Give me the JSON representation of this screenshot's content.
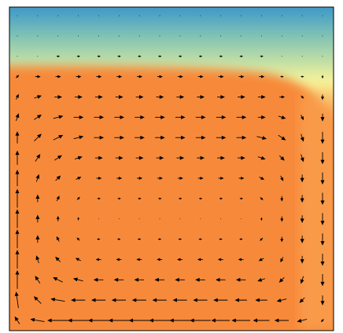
{
  "chart_data": {
    "type": "quiver",
    "color": "#000000",
    "u": [
      [
        0,
        0,
        0,
        0,
        0,
        0,
        0,
        0,
        0,
        0,
        0,
        0,
        0,
        0,
        0,
        0
      ],
      [
        0,
        0,
        0,
        0,
        0,
        0,
        0,
        0,
        0,
        0,
        0,
        0,
        0,
        0,
        0,
        0
      ],
      [
        0,
        0,
        1,
        1,
        1,
        1,
        1,
        1,
        1,
        1,
        1,
        1,
        1,
        0,
        0,
        0
      ],
      [
        1,
        2,
        2,
        2,
        2,
        2,
        2,
        2,
        2,
        2,
        2,
        2,
        2,
        1,
        1,
        0
      ],
      [
        1,
        3,
        3,
        3,
        3,
        3,
        3,
        3,
        3,
        3,
        3,
        3,
        3,
        2,
        1,
        0
      ],
      [
        1,
        3,
        4,
        4,
        4,
        4,
        4,
        4,
        4,
        4,
        4,
        4,
        3,
        3,
        1,
        0
      ],
      [
        0,
        3,
        4,
        4,
        4,
        4,
        4,
        4,
        4,
        4,
        4,
        4,
        4,
        3,
        1,
        0
      ],
      [
        0,
        2,
        3,
        3,
        3,
        3,
        3,
        3,
        3,
        3,
        3,
        3,
        3,
        2,
        1,
        0
      ],
      [
        0,
        1,
        2,
        2,
        2,
        2,
        2,
        2,
        2,
        2,
        2,
        2,
        2,
        1,
        0,
        0
      ],
      [
        0,
        0,
        1,
        1,
        1,
        1,
        1,
        1,
        1,
        1,
        1,
        1,
        1,
        0,
        0,
        0
      ],
      [
        0,
        0,
        0,
        0,
        0,
        0,
        0,
        0,
        0,
        0,
        0,
        0,
        0,
        0,
        0,
        0
      ],
      [
        0,
        0,
        -1,
        -1,
        -1,
        -1,
        -1,
        -1,
        -1,
        -1,
        -1,
        -1,
        -1,
        0,
        0,
        0
      ],
      [
        0,
        -1,
        -2,
        -2,
        -2,
        -2,
        -2,
        -2,
        -2,
        -2,
        -2,
        -2,
        -2,
        -1,
        0,
        0
      ],
      [
        0,
        -2,
        -4,
        -4,
        -4,
        -4,
        -4,
        -4,
        -4,
        -4,
        -4,
        -4,
        -3,
        -2,
        -1,
        0
      ],
      [
        -1,
        -3,
        -6,
        -6,
        -6,
        -6,
        -6,
        -6,
        -6,
        -6,
        -6,
        -5,
        -5,
        -4,
        -2,
        0
      ],
      [
        -2,
        -6,
        -9,
        -9,
        -9,
        -9,
        -9,
        -9,
        -9,
        -9,
        -8,
        -8,
        -7,
        -6,
        -4,
        -1
      ]
    ],
    "v": [
      [
        0,
        0,
        0,
        0,
        0,
        0,
        0,
        0,
        0,
        0,
        0,
        0,
        0,
        0,
        0,
        0
      ],
      [
        0,
        0,
        0,
        0,
        0,
        0,
        0,
        0,
        0,
        0,
        0,
        0,
        0,
        0,
        0,
        0
      ],
      [
        0,
        0,
        0,
        0,
        0,
        0,
        0,
        0,
        0,
        0,
        0,
        0,
        0,
        0,
        0,
        0
      ],
      [
        1,
        0,
        0,
        0,
        0,
        0,
        0,
        0,
        0,
        0,
        0,
        0,
        0,
        0,
        0,
        -1
      ],
      [
        2,
        1,
        0,
        0,
        0,
        0,
        0,
        0,
        0,
        0,
        0,
        0,
        0,
        0,
        -1,
        -2
      ],
      [
        3,
        2,
        1,
        0,
        0,
        0,
        0,
        0,
        0,
        0,
        0,
        0,
        0,
        -1,
        -2,
        -3
      ],
      [
        5,
        3,
        2,
        1,
        0,
        0,
        0,
        0,
        0,
        0,
        0,
        0,
        -1,
        -2,
        -3,
        -5
      ],
      [
        6,
        3,
        2,
        1,
        0,
        0,
        0,
        0,
        0,
        0,
        0,
        0,
        -1,
        -2,
        -3,
        -5
      ],
      [
        7,
        3,
        2,
        1,
        0,
        0,
        0,
        0,
        0,
        0,
        0,
        0,
        -1,
        -2,
        -3,
        -5
      ],
      [
        8,
        3,
        2,
        1,
        0,
        0,
        0,
        0,
        0,
        0,
        0,
        0,
        -1,
        -2,
        -3,
        -5
      ],
      [
        8,
        3,
        2,
        1,
        0,
        0,
        0,
        0,
        0,
        0,
        0,
        0,
        -1,
        -2,
        -3,
        -5
      ],
      [
        8,
        3,
        2,
        1,
        0,
        0,
        0,
        0,
        0,
        0,
        0,
        0,
        -1,
        -2,
        -3,
        -5
      ],
      [
        8,
        3,
        2,
        1,
        0,
        0,
        0,
        0,
        0,
        0,
        0,
        0,
        -1,
        -2,
        -3,
        -5
      ],
      [
        8,
        3,
        2,
        1,
        0,
        0,
        0,
        0,
        0,
        0,
        0,
        0,
        -1,
        -2,
        -3,
        -5
      ],
      [
        7,
        3,
        1,
        0,
        0,
        0,
        0,
        0,
        0,
        0,
        0,
        0,
        0,
        -1,
        -2,
        -4
      ],
      [
        3,
        1,
        0,
        0,
        0,
        0,
        0,
        0,
        0,
        0,
        0,
        0,
        0,
        0,
        -1,
        -1
      ]
    ]
  }
}
